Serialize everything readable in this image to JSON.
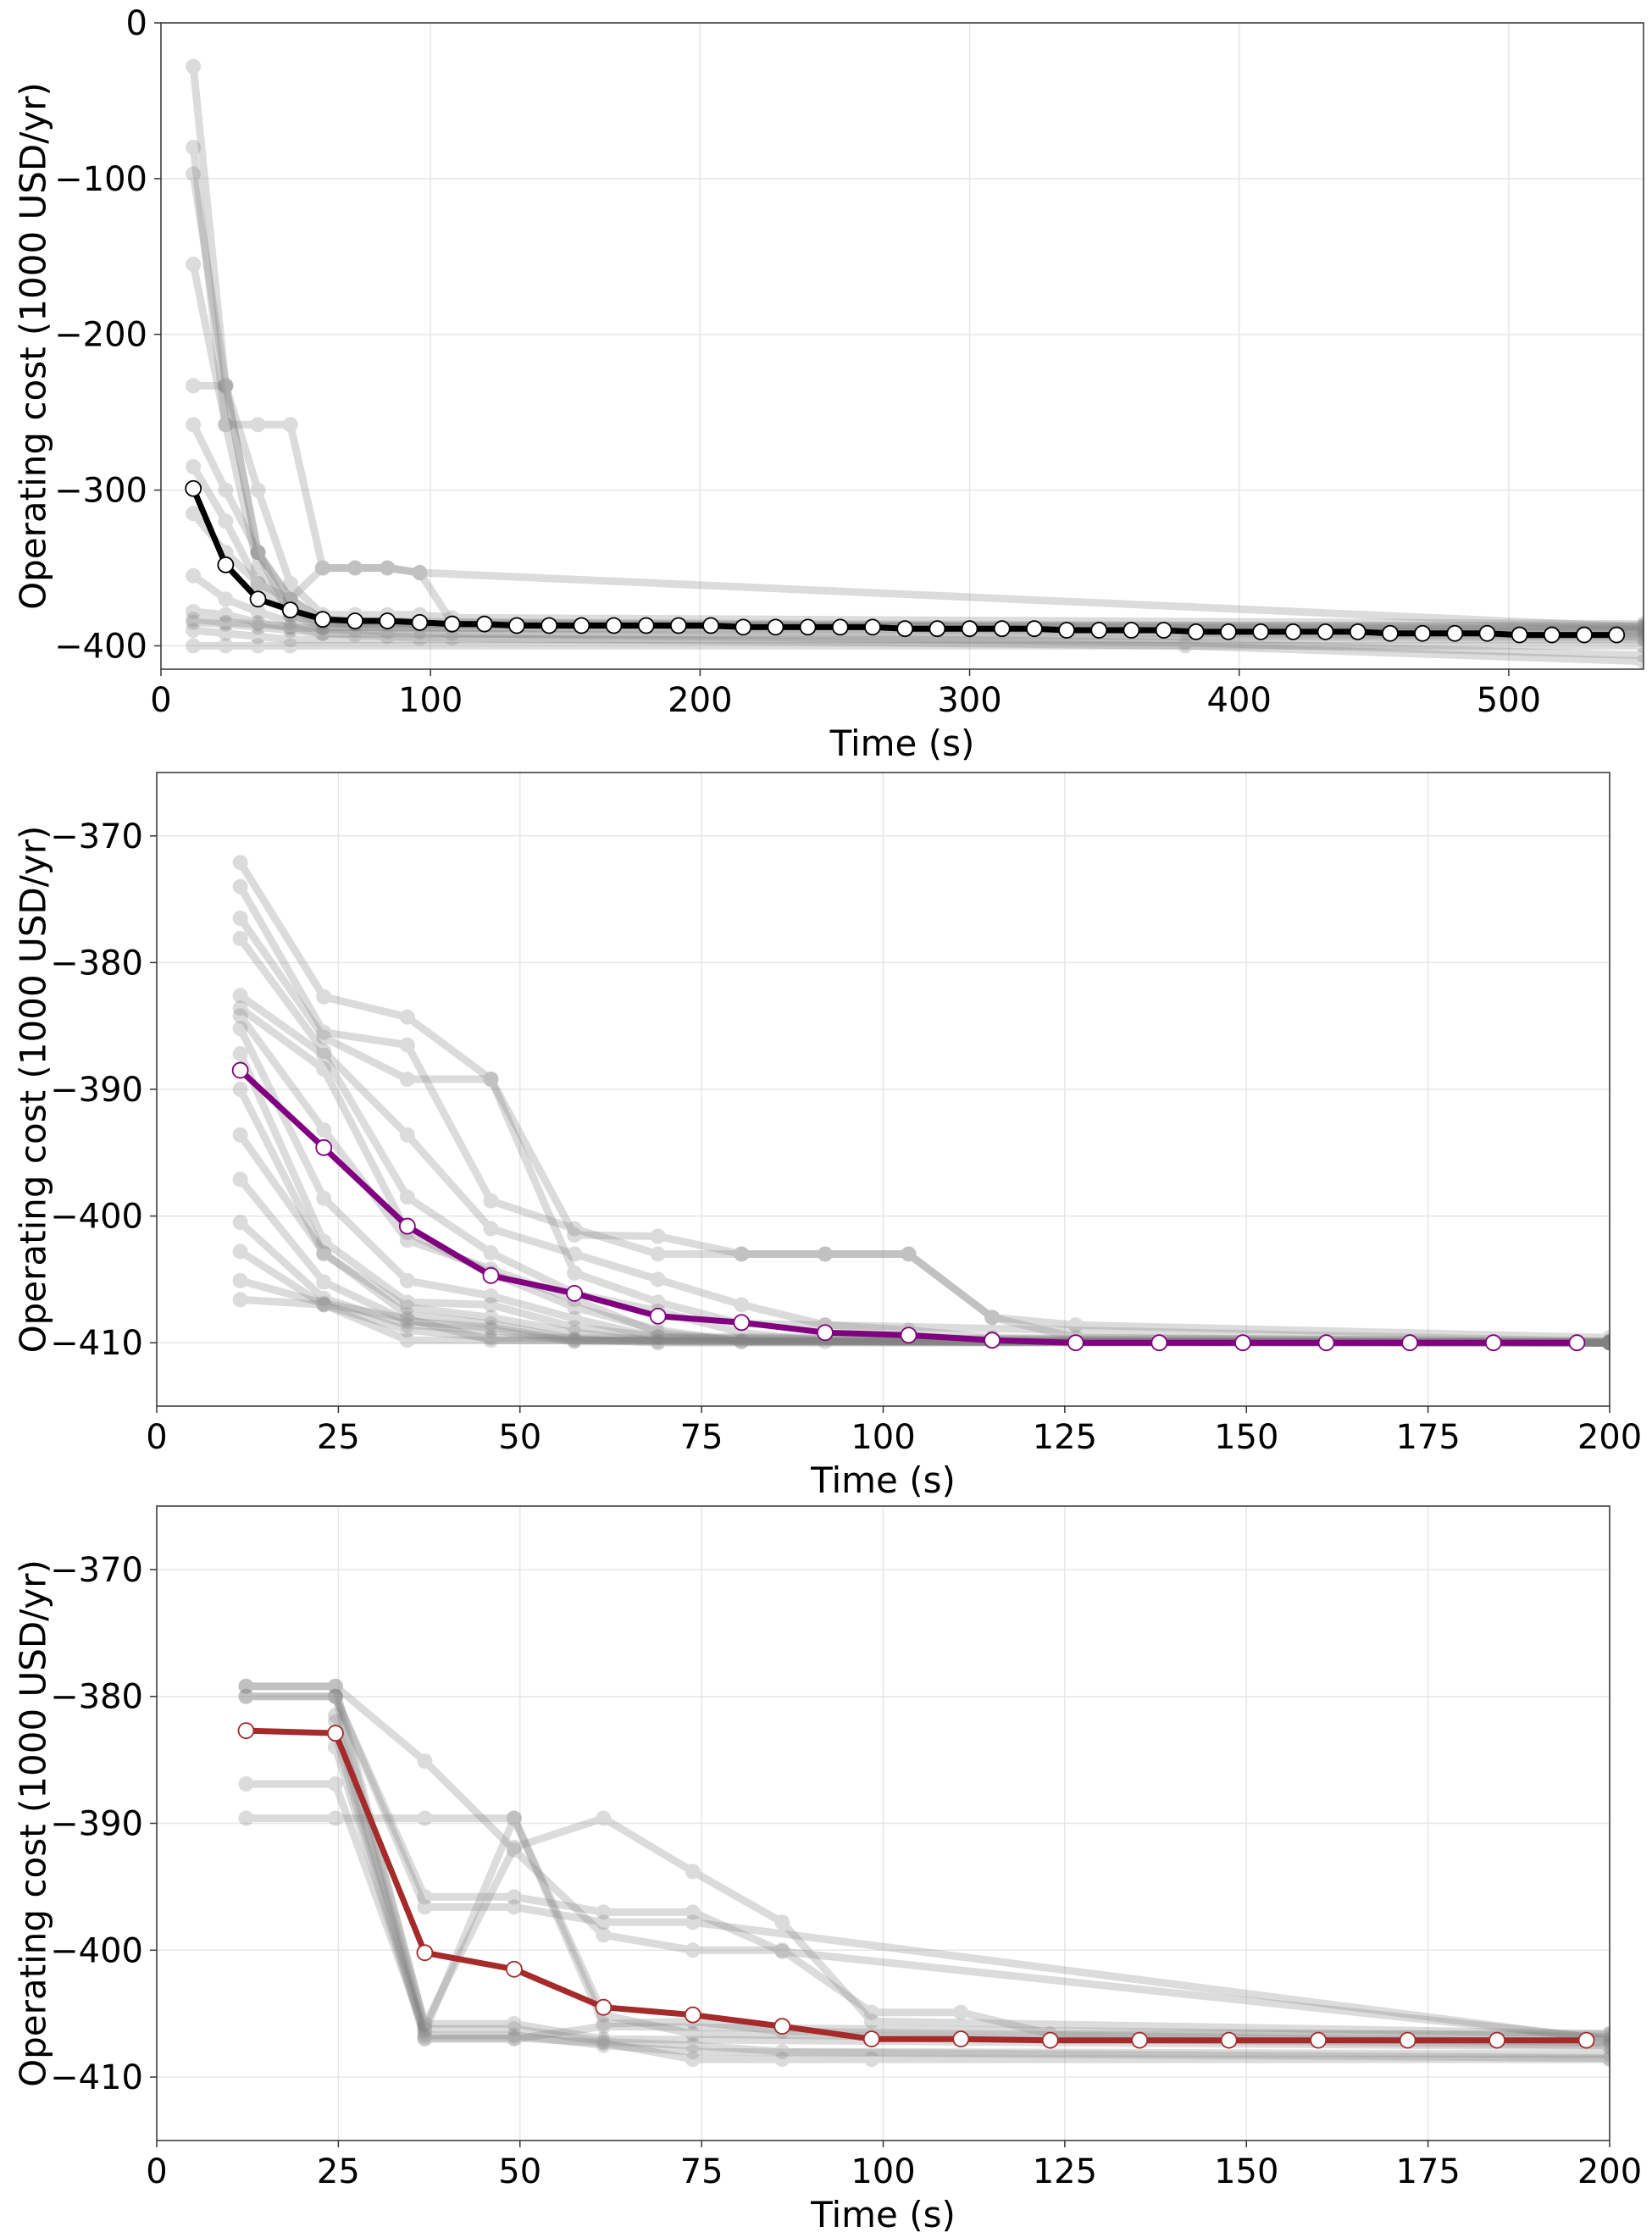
{
  "chart_data": [
    {
      "type": "line",
      "xlabel": "Time (s)",
      "ylabel": "Operating cost (1000 USD/yr)",
      "xlim": [
        0,
        550
      ],
      "ylim": [
        -415,
        0
      ],
      "xticks": [
        0,
        100,
        200,
        300,
        400,
        500
      ],
      "yticks": [
        0,
        -100,
        -200,
        -300,
        -400
      ],
      "grid": true,
      "colors": {
        "mean": "#000000",
        "runs": "#808080",
        "marker_fill": "#ffffff"
      },
      "mean_series": {
        "x": [
          12,
          24,
          36,
          48,
          60,
          72,
          84,
          96,
          108,
          120,
          132,
          144,
          156,
          168,
          180,
          192,
          204,
          216,
          228,
          240,
          252,
          264,
          276,
          288,
          300,
          312,
          324,
          336,
          348,
          360,
          372,
          384,
          396,
          408,
          420,
          432,
          444,
          456,
          468,
          480,
          492,
          504,
          516,
          528,
          540
        ],
        "y": [
          -299,
          -348,
          -370,
          -377,
          -383,
          -384,
          -384,
          -385,
          -386,
          -386,
          -387,
          -387,
          -387,
          -387,
          -387,
          -387,
          -387,
          -388,
          -388,
          -388,
          -388,
          -388,
          -389,
          -389,
          -389,
          -389,
          -389,
          -390,
          -390,
          -390,
          -390,
          -391,
          -391,
          -391,
          -391,
          -391,
          -391,
          -392,
          -392,
          -392,
          -392,
          -393,
          -393,
          -393,
          -393
        ]
      },
      "runs": [
        {
          "x": [
            12,
            24,
            36,
            48,
            60,
            72,
            84,
            96,
            108,
            550
          ],
          "y": [
            -28,
            -233,
            -340,
            -370,
            -383,
            -385,
            -385,
            -386,
            -387,
            -387
          ]
        },
        {
          "x": [
            12,
            24,
            36,
            48,
            60,
            72,
            550
          ],
          "y": [
            -80,
            -258,
            -350,
            -378,
            -385,
            -386,
            -389
          ]
        },
        {
          "x": [
            12,
            24,
            36,
            48,
            60,
            72,
            84,
            96,
            108,
            550
          ],
          "y": [
            -97,
            -233,
            -300,
            -360,
            -380,
            -380,
            -380,
            -380,
            -382,
            -386
          ]
        },
        {
          "x": [
            12,
            24,
            36,
            48,
            60,
            72,
            84,
            96,
            108,
            550
          ],
          "y": [
            -155,
            -258,
            -258,
            -258,
            -350,
            -350,
            -350,
            -353,
            -385,
            -388
          ]
        },
        {
          "x": [
            12,
            24,
            36,
            48,
            60,
            72,
            550
          ],
          "y": [
            -233,
            -233,
            -340,
            -380,
            -385,
            -386,
            -390
          ]
        },
        {
          "x": [
            12,
            24,
            36,
            48,
            60,
            72,
            550
          ],
          "y": [
            -258,
            -300,
            -340,
            -370,
            -383,
            -384,
            -392
          ]
        },
        {
          "x": [
            12,
            24,
            36,
            48,
            60,
            550
          ],
          "y": [
            -285,
            -320,
            -360,
            -380,
            -388,
            -391
          ]
        },
        {
          "x": [
            12,
            24,
            36,
            48,
            60,
            72,
            84,
            96,
            550
          ],
          "y": [
            -315,
            -340,
            -360,
            -370,
            -350,
            -350,
            -350,
            -353,
            -388
          ]
        },
        {
          "x": [
            12,
            24,
            36,
            48,
            60,
            550
          ],
          "y": [
            -355,
            -370,
            -378,
            -385,
            -388,
            -394
          ]
        },
        {
          "x": [
            12,
            24,
            36,
            48,
            60,
            550
          ],
          "y": [
            -378,
            -380,
            -385,
            -388,
            -392,
            -395
          ]
        },
        {
          "x": [
            12,
            24,
            36,
            48,
            550
          ],
          "y": [
            -390,
            -392,
            -394,
            -396,
            -396
          ]
        },
        {
          "x": [
            12,
            24,
            36,
            48,
            550
          ],
          "y": [
            -400,
            -400,
            -400,
            -400,
            -400
          ]
        },
        {
          "x": [
            12,
            24,
            36,
            48,
            60,
            72,
            84,
            96,
            108,
            380,
            550
          ],
          "y": [
            -385,
            -386,
            -388,
            -390,
            -392,
            -393,
            -394,
            -395,
            -395,
            -400,
            -410
          ]
        },
        {
          "x": [
            12,
            24,
            36,
            48,
            60,
            72,
            84,
            96,
            108,
            380,
            550
          ],
          "y": [
            -383,
            -385,
            -386,
            -388,
            -389,
            -390,
            -391,
            -391,
            -392,
            -398,
            -406
          ]
        }
      ]
    },
    {
      "type": "line",
      "xlabel": "Time (s)",
      "ylabel": "Operating cost (1000 USD/yr)",
      "xlim": [
        0,
        200
      ],
      "ylim": [
        -415,
        -365
      ],
      "xticks": [
        0,
        25,
        50,
        75,
        100,
        125,
        150,
        175,
        200
      ],
      "yticks": [
        -370,
        -380,
        -390,
        -400,
        -410
      ],
      "grid": true,
      "colors": {
        "mean": "#800080",
        "runs": "#808080",
        "marker_fill": "#ffffff"
      },
      "mean_series": {
        "x": [
          11.5,
          23,
          34.5,
          46,
          57.5,
          69,
          80.5,
          92,
          103.5,
          115,
          126.5,
          138,
          149.5,
          161,
          172.5,
          184,
          195.5
        ],
        "y": [
          -388.5,
          -394.6,
          -400.8,
          -404.7,
          -406.1,
          -407.9,
          -408.4,
          -409.2,
          -409.4,
          -409.8,
          -410.0,
          -410.0,
          -410.0,
          -410.0,
          -410.0,
          -410.0,
          -410.0
        ]
      },
      "runs": [
        {
          "x": [
            11.5,
            23,
            34.5,
            46,
            57.5,
            69,
            80.5,
            92,
            103.5,
            115,
            126.5,
            200
          ],
          "y": [
            -372.1,
            -382.7,
            -384.3,
            -389.2,
            -401.5,
            -401.6,
            -403.0,
            -403.0,
            -403.0,
            -408.0,
            -408.6,
            -409.6
          ]
        },
        {
          "x": [
            11.5,
            23,
            34.5,
            46,
            57.5,
            69,
            80.5,
            92,
            103.5,
            115,
            126.5,
            200
          ],
          "y": [
            -374.0,
            -385.5,
            -386.5,
            -398.8,
            -401.0,
            -403.0,
            -403.0,
            -403.0,
            -403.0,
            -408.0,
            -409.6,
            -409.9
          ]
        },
        {
          "x": [
            11.5,
            23,
            34.5,
            46,
            57.5,
            69,
            80.5,
            92,
            103.5,
            115,
            200
          ],
          "y": [
            -376.5,
            -385.9,
            -389.2,
            -389.2,
            -404.5,
            -406.8,
            -408.5,
            -408.6,
            -409.0,
            -409.6,
            -409.9
          ]
        },
        {
          "x": [
            11.5,
            23,
            34.5,
            46,
            57.5,
            69,
            80.5,
            92,
            200
          ],
          "y": [
            -378.1,
            -387.0,
            -393.6,
            -401.0,
            -403.0,
            -405.0,
            -407.0,
            -408.6,
            -409.9
          ]
        },
        {
          "x": [
            11.5,
            23,
            34.5,
            46,
            57.5,
            69,
            80.5,
            92,
            200
          ],
          "y": [
            -382.6,
            -387.3,
            -398.5,
            -402.9,
            -406.1,
            -407.5,
            -409.2,
            -409.9,
            -410.0
          ]
        },
        {
          "x": [
            11.5,
            23,
            34.5,
            46,
            57.5,
            69,
            80.5,
            200
          ],
          "y": [
            -383.6,
            -388.4,
            -401.3,
            -404.5,
            -407.2,
            -409.0,
            -409.9,
            -410.0
          ]
        },
        {
          "x": [
            11.5,
            23,
            34.5,
            46,
            57.5,
            69,
            80.5,
            200
          ],
          "y": [
            -384.2,
            -393.2,
            -401.9,
            -404.2,
            -406.6,
            -409.2,
            -409.9,
            -410.0
          ]
        },
        {
          "x": [
            11.5,
            23,
            34.5,
            46,
            57.5,
            69,
            200
          ],
          "y": [
            -385.2,
            -398.6,
            -405.1,
            -406.3,
            -408.1,
            -409.6,
            -410.0
          ]
        },
        {
          "x": [
            11.5,
            23,
            34.5,
            46,
            57.5,
            69,
            200
          ],
          "y": [
            -387.2,
            -402.0,
            -406.8,
            -407.0,
            -408.8,
            -409.5,
            -410.0
          ]
        },
        {
          "x": [
            11.5,
            23,
            34.5,
            46,
            57.5,
            69,
            200
          ],
          "y": [
            -390.0,
            -403.0,
            -407.2,
            -408.0,
            -409.2,
            -409.9,
            -410.0
          ]
        },
        {
          "x": [
            11.5,
            23,
            34.5,
            46,
            57.5,
            69,
            200
          ],
          "y": [
            -393.6,
            -402.9,
            -407.8,
            -408.5,
            -409.7,
            -410.0,
            -410.0
          ]
        },
        {
          "x": [
            11.5,
            23,
            34.5,
            46,
            57.5,
            200
          ],
          "y": [
            -397.1,
            -405.2,
            -408.3,
            -408.8,
            -409.8,
            -410.0
          ]
        },
        {
          "x": [
            11.5,
            23,
            34.5,
            46,
            57.5,
            200
          ],
          "y": [
            -400.5,
            -406.5,
            -408.6,
            -409.0,
            -409.9,
            -410.0
          ]
        },
        {
          "x": [
            11.5,
            23,
            34.5,
            46,
            200
          ],
          "y": [
            -402.8,
            -407.0,
            -409.0,
            -409.6,
            -410.0
          ]
        },
        {
          "x": [
            11.5,
            23,
            34.5,
            46,
            200
          ],
          "y": [
            -405.1,
            -406.9,
            -408.1,
            -409.8,
            -410.0
          ]
        },
        {
          "x": [
            11.5,
            23,
            34.5,
            200
          ],
          "y": [
            -406.6,
            -407.0,
            -409.8,
            -410.0
          ]
        }
      ]
    },
    {
      "type": "line",
      "xlabel": "Time (s)",
      "ylabel": "Operating cost (1000 USD/yr)",
      "xlim": [
        0,
        200
      ],
      "ylim": [
        -415,
        -365
      ],
      "xticks": [
        0,
        25,
        50,
        75,
        100,
        125,
        150,
        175,
        200
      ],
      "yticks": [
        -370,
        -380,
        -390,
        -400,
        -410
      ],
      "grid": true,
      "colors": {
        "mean": "#a52a2a",
        "runs": "#808080",
        "marker_fill": "#ffffff"
      },
      "mean_series": {
        "x": [
          12.3,
          24.6,
          36.9,
          49.2,
          61.5,
          73.8,
          86.1,
          98.4,
          110.7,
          123,
          135.3,
          147.6,
          159.9,
          172.2,
          184.5,
          196.8
        ],
        "y": [
          -382.7,
          -382.9,
          -400.2,
          -401.5,
          -404.5,
          -405.1,
          -406.0,
          -407.0,
          -407.0,
          -407.1,
          -407.1,
          -407.1,
          -407.1,
          -407.1,
          -407.1,
          -407.1
        ]
      },
      "runs": [
        {
          "x": [
            12.3,
            24.6,
            36.9,
            49.2,
            61.5,
            73.8,
            86.1,
            98.4,
            110.7,
            123,
            200
          ],
          "y": [
            -379.2,
            -379.2,
            -385.1,
            -392.1,
            -398.8,
            -400.0,
            -400.0,
            -404.9,
            -404.9,
            -406.6,
            -406.6
          ]
        },
        {
          "x": [
            12.3,
            24.6,
            36.9,
            49.2,
            61.5,
            73.8,
            86.1,
            98.4,
            200
          ],
          "y": [
            -379.2,
            -379.2,
            -405.9,
            -391.9,
            -389.6,
            -393.8,
            -397.8,
            -405.6,
            -406.6
          ]
        },
        {
          "x": [
            12.3,
            24.6,
            36.9,
            49.2,
            61.5,
            73.8,
            86.1,
            200
          ],
          "y": [
            -380.0,
            -380.0,
            -395.8,
            -395.8,
            -397.0,
            -397.0,
            -400.1,
            -407.0
          ]
        },
        {
          "x": [
            12.3,
            24.6,
            36.9,
            49.2,
            61.5,
            73.8,
            200
          ],
          "y": [
            -380.0,
            -380.0,
            -396.6,
            -396.6,
            -397.8,
            -397.8,
            -407.1
          ]
        },
        {
          "x": [
            12.3,
            24.6,
            36.9,
            49.2,
            61.5,
            73.8,
            86.1,
            200
          ],
          "y": [
            -386.9,
            -386.9,
            -406.4,
            -389.6,
            -405.8,
            -405.6,
            -406.4,
            -407.3
          ]
        },
        {
          "x": [
            12.3,
            24.6,
            36.9,
            49.2,
            61.5,
            73.8,
            200
          ],
          "y": [
            -389.6,
            -389.6,
            -389.6,
            -389.6,
            -405.1,
            -406.6,
            -407.5
          ]
        },
        {
          "x": [
            24.6,
            36.9,
            49.2,
            61.5,
            200
          ],
          "y": [
            -380.0,
            -405.8,
            -405.8,
            -407.0,
            -407.6
          ]
        },
        {
          "x": [
            24.6,
            36.9,
            49.2,
            61.5,
            73.8,
            86.1,
            200
          ],
          "y": [
            -381.5,
            -406.2,
            -406.2,
            -407.2,
            -407.5,
            -408.0,
            -408.2
          ]
        },
        {
          "x": [
            24.6,
            36.9,
            49.2,
            61.5,
            73.8,
            200
          ],
          "y": [
            -382.0,
            -406.7,
            -406.7,
            -407.5,
            -408.0,
            -408.5
          ]
        },
        {
          "x": [
            24.6,
            36.9,
            49.2,
            61.5,
            73.8,
            86.1,
            98.4,
            200
          ],
          "y": [
            -383.0,
            -406.9,
            -406.9,
            -407.3,
            -408.6,
            -408.6,
            -408.6,
            -408.6
          ]
        },
        {
          "x": [
            24.6,
            36.9,
            49.2,
            61.5,
            200
          ],
          "y": [
            -384.0,
            -407.0,
            -407.0,
            -406.0,
            -406.8
          ]
        }
      ]
    }
  ]
}
